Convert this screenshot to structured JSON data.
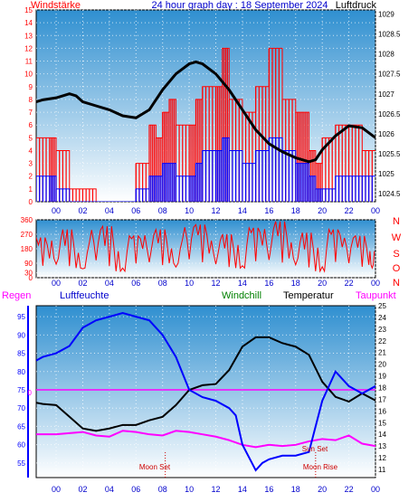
{
  "header": {
    "left_label": "Windstärke",
    "title": "24 hour graph day : 18 September 2024",
    "right_label": "Luftdruck"
  },
  "colors": {
    "gust": "#ff0000",
    "wind": "#0000ff",
    "pressure": "#000000",
    "humidity": "#0000ff",
    "temperature": "#000000",
    "dewpoint": "#ff00ff",
    "windchill": "#008000",
    "rain": "#ff00ff",
    "panel_top": "#2f8fd0",
    "panel_bottom": "#ffffff",
    "axis_red": "#ff0000",
    "axis_blue": "#0000ff"
  },
  "hour_ticks": [
    "00",
    "02",
    "04",
    "06",
    "08",
    "10",
    "12",
    "14",
    "16",
    "18",
    "20",
    "22",
    "00"
  ],
  "direction_labels": [
    "N",
    "W",
    "S",
    "O",
    "N"
  ],
  "legend": {
    "rain": "Regen",
    "humidity": "Luftfeuchte",
    "windchill": "Windchill",
    "temperature": "Temperatur",
    "dewpoint": "Taupunkt"
  },
  "annotations": {
    "moon_set": "Moon Set",
    "sun_set": "Sun Set",
    "moon_rise": "Moon Rise"
  },
  "rain_zero_label": "0",
  "chart_data": [
    {
      "type": "line",
      "name": "wind-pressure",
      "x_unit": "hour",
      "xlim": [
        -1.5,
        24
      ],
      "y_left": {
        "label": "Windstärke",
        "ticks": [
          0,
          1,
          2,
          3,
          4,
          5,
          6,
          7,
          8,
          9,
          10,
          11,
          12,
          13,
          14,
          15
        ],
        "lim": [
          0,
          15
        ]
      },
      "y_right": {
        "label": "Luftdruck",
        "ticks": [
          "1024.5",
          "1025",
          "1025.5",
          "1026",
          "1026.5",
          "1027",
          "1027.5",
          "1028",
          "1028.5",
          "1029"
        ],
        "lim": [
          1024.3,
          1029.1
        ]
      },
      "series": [
        {
          "name": "Windstärke",
          "axis": "left",
          "x": [
            -1.5,
            -0.5,
            0,
            1,
            2,
            3,
            4,
            5,
            5.5,
            6,
            7,
            7.5,
            8,
            8.5,
            9,
            10,
            10.5,
            11,
            12,
            12.5,
            13,
            14,
            15,
            16,
            17,
            18,
            18.5,
            19,
            19.5,
            20,
            21,
            22,
            23,
            24
          ],
          "y": [
            5,
            5,
            4,
            1,
            1,
            0,
            0,
            0,
            0,
            3,
            6,
            5,
            7,
            8,
            6,
            6,
            8,
            9,
            9,
            12,
            8,
            7,
            9,
            12,
            8,
            7,
            7,
            4,
            3,
            5,
            6,
            6,
            4,
            4
          ]
        },
        {
          "name": "Wind",
          "axis": "left",
          "x": [
            -1.5,
            -0.5,
            0,
            1,
            2,
            3,
            4,
            5,
            5.5,
            6,
            7,
            7.5,
            8,
            8.5,
            9,
            10,
            10.5,
            11,
            12,
            12.5,
            13,
            14,
            15,
            16,
            17,
            18,
            18.5,
            19,
            19.5,
            20,
            21,
            22,
            23,
            24
          ],
          "y": [
            2,
            2,
            1,
            0,
            0,
            0,
            0,
            0,
            0,
            1,
            2,
            2,
            3,
            3,
            2,
            2,
            3,
            4,
            4,
            5,
            4,
            3,
            4,
            5,
            4,
            3,
            3,
            2,
            1,
            1,
            2,
            2,
            2,
            2
          ]
        },
        {
          "name": "Luftdruck",
          "axis": "right",
          "x": [
            -1.5,
            -1,
            0,
            1,
            1.5,
            2,
            3,
            4,
            5,
            6,
            7,
            8,
            9,
            10,
            10.5,
            11,
            12,
            13,
            14,
            15,
            16,
            17,
            18,
            19,
            19.5,
            20,
            21,
            22,
            23,
            24
          ],
          "y": [
            1026.8,
            1026.85,
            1026.9,
            1027.0,
            1026.95,
            1026.8,
            1026.7,
            1026.6,
            1026.45,
            1026.4,
            1026.6,
            1027.1,
            1027.5,
            1027.75,
            1027.8,
            1027.75,
            1027.5,
            1027.1,
            1026.6,
            1026.1,
            1025.75,
            1025.55,
            1025.4,
            1025.3,
            1025.35,
            1025.6,
            1025.95,
            1026.2,
            1026.15,
            1025.9
          ]
        }
      ]
    },
    {
      "type": "line",
      "name": "wind-direction",
      "x_unit": "hour",
      "xlim": [
        -1.5,
        24
      ],
      "y": {
        "ticks": [
          0,
          30,
          90,
          180,
          270,
          360
        ],
        "lim": [
          0,
          360
        ]
      },
      "series": [
        {
          "name": "Windrichtung",
          "x": [
            -1.5,
            -0.5,
            0.5,
            1.5,
            2.5,
            3.5,
            4.5,
            5.5,
            6.5,
            7.5,
            8.5,
            9.5,
            10.5,
            11.5,
            12.5,
            13.5,
            14.5,
            15.5,
            16.5,
            17.5,
            18.5,
            19.5,
            20.5,
            21.5,
            22.5,
            23.5,
            24
          ],
          "y": [
            250,
            120,
            300,
            60,
            220,
            320,
            40,
            260,
            180,
            300,
            90,
            240,
            330,
            150,
            270,
            60,
            310,
            200,
            350,
            120,
            280,
            40,
            300,
            190,
            260,
            80,
            220
          ]
        }
      ]
    },
    {
      "type": "line",
      "name": "humidity-temperature",
      "x_unit": "hour",
      "xlim": [
        -1.5,
        24
      ],
      "y_left": {
        "label": "Luftfeuchte",
        "ticks": [
          55,
          60,
          65,
          70,
          75,
          80,
          85,
          90,
          95
        ],
        "lim": [
          51,
          98
        ]
      },
      "y_right": {
        "label": "Temperatur",
        "ticks": [
          11,
          12,
          13,
          14,
          15,
          16,
          17,
          18,
          19,
          20,
          21,
          22,
          23,
          24,
          25
        ],
        "lim": [
          10.3,
          25
        ]
      },
      "series": [
        {
          "name": "Luftfeuchte",
          "axis": "left",
          "x": [
            -1.5,
            -1,
            0,
            1,
            2,
            2.5,
            3,
            4,
            5,
            6,
            7,
            8,
            9,
            10,
            11,
            12,
            13,
            13.5,
            14,
            15,
            15.5,
            16,
            17,
            18,
            19,
            20,
            21,
            22,
            23,
            24
          ],
          "y": [
            83,
            84,
            85,
            87,
            92,
            93,
            94,
            95,
            96,
            95,
            94,
            90,
            84,
            75,
            73,
            72,
            70,
            68,
            60,
            53,
            55,
            56,
            57,
            57,
            58,
            72,
            80,
            76,
            74,
            76
          ]
        },
        {
          "name": "Temperatur",
          "axis": "right",
          "x": [
            -1.5,
            -1,
            0,
            1,
            2,
            3,
            4,
            5,
            6,
            7,
            8,
            9,
            10,
            11,
            12,
            13,
            14,
            15,
            16,
            17,
            18,
            19,
            20,
            21,
            22,
            23,
            24
          ],
          "y": [
            16.7,
            16.6,
            16.5,
            15.5,
            14.5,
            14.3,
            14.5,
            14.8,
            14.8,
            15.2,
            15.5,
            16.5,
            17.8,
            18.2,
            18.3,
            19.5,
            21.5,
            22.3,
            22.3,
            21.8,
            21.5,
            20.8,
            18.5,
            17.2,
            16.8,
            17.5,
            16.9
          ]
        },
        {
          "name": "Taupunkt",
          "axis": "right",
          "x": [
            -1.5,
            0,
            1,
            2,
            3,
            4,
            5,
            6,
            7,
            8,
            9,
            10,
            11,
            12,
            13,
            14,
            15,
            16,
            17,
            18,
            19,
            20,
            21,
            22,
            23,
            24
          ],
          "y": [
            14.0,
            14.0,
            14.1,
            14.2,
            13.9,
            13.8,
            14.3,
            14.2,
            14.0,
            13.9,
            14.3,
            14.2,
            14.0,
            13.8,
            13.5,
            13.1,
            12.9,
            13.1,
            13.0,
            13.1,
            13.4,
            13.6,
            13.5,
            13.9,
            13.2,
            13.0
          ]
        },
        {
          "name": "Regen",
          "axis": "left",
          "x": [
            -1.5,
            24
          ],
          "y": [
            75,
            75
          ]
        }
      ]
    }
  ]
}
